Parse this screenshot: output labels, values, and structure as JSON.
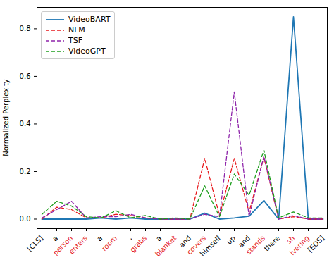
{
  "chart_data": {
    "type": "line",
    "y_label": "Normalized Perplexity",
    "categories": [
      "[CLS]",
      "a",
      "person",
      "enters",
      "a",
      "room",
      ",",
      "grabs",
      "a",
      "blanket",
      "and",
      "covers",
      "himself",
      "up",
      "and",
      "stands",
      "there",
      "sh",
      "ivering",
      "[EOS]"
    ],
    "category_colors": [
      "#000000",
      "#000000",
      "#e41a1c",
      "#e41a1c",
      "#000000",
      "#e41a1c",
      "#000000",
      "#e41a1c",
      "#000000",
      "#e41a1c",
      "#000000",
      "#e41a1c",
      "#000000",
      "#000000",
      "#000000",
      "#e41a1c",
      "#000000",
      "#e41a1c",
      "#e41a1c",
      "#000000"
    ],
    "series": [
      {
        "name": "VideoBART",
        "color": "#1f77b4",
        "line_style": "solid",
        "values": [
          0,
          0,
          0,
          0,
          0.005,
          0,
          0.005,
          0,
          0,
          0,
          0,
          0.025,
          0,
          0.005,
          0.012,
          0.078,
          0,
          0.85,
          0,
          0
        ]
      },
      {
        "name": "NLM",
        "color": "#e8191c",
        "line_style": "dashed",
        "values": [
          0,
          0.05,
          0.04,
          0.005,
          0.005,
          0.02,
          0.015,
          0.005,
          0,
          0,
          0,
          0.255,
          0.015,
          0.255,
          0.03,
          0.26,
          0,
          0.01,
          0,
          0
        ]
      },
      {
        "name": "TSF",
        "color": "#8e24aa",
        "line_style": "dashed",
        "values": [
          0.005,
          0.04,
          0.075,
          0.005,
          0.01,
          0.01,
          0.02,
          0.005,
          0,
          0,
          0,
          0.02,
          0.01,
          0.535,
          0.01,
          0.265,
          0,
          0.015,
          0,
          0
        ]
      },
      {
        "name": "VideoGPT",
        "color": "#1e9e1e",
        "line_style": "dashed",
        "values": [
          0.02,
          0.075,
          0.055,
          0.01,
          0.005,
          0.035,
          0.005,
          0.015,
          0,
          0.005,
          0,
          0.14,
          0.01,
          0.19,
          0.1,
          0.29,
          0.005,
          0.03,
          0.005,
          0.005
        ]
      }
    ],
    "ylim": [
      -0.04,
      0.89
    ],
    "yticks": [
      {
        "value": 0,
        "label": "0.0"
      },
      {
        "value": 0.2,
        "label": "0.2"
      },
      {
        "value": 0.4,
        "label": "0.4"
      },
      {
        "value": 0.6,
        "label": "0.6"
      },
      {
        "value": 0.8,
        "label": "0.8"
      }
    ],
    "legend": "upper left",
    "grid": false
  }
}
